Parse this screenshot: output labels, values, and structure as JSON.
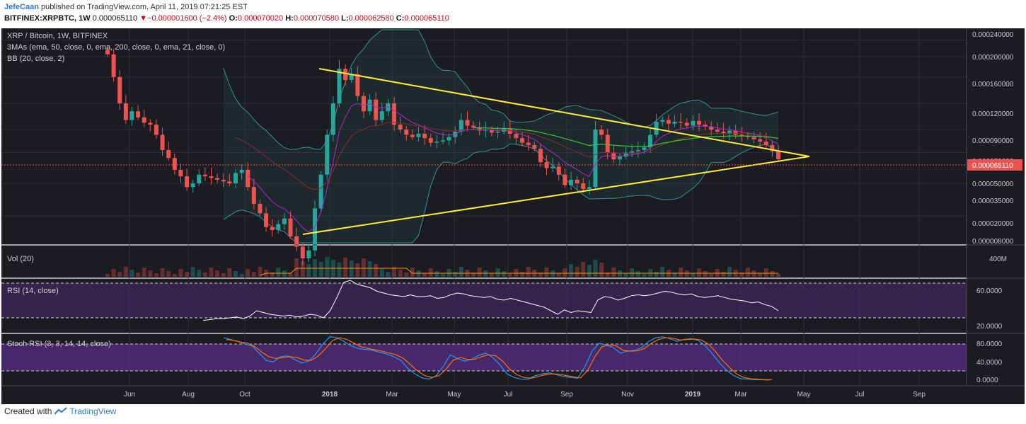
{
  "header": {
    "user": "JefeCaan",
    "published_text": " published on TradingView.com, April 11, 2019 07:21:25 EST",
    "symbol": "BITFINEX:XRPBTC, 1W",
    "last": "0.000065110",
    "change_arrow": "▼",
    "change": "−0.000001600 (−2.4%)",
    "o_label": "O:",
    "o_value": "0.000070020",
    "h_label": "H:",
    "h_value": "0.000070580",
    "l_label": "L:",
    "l_value": "0.000062580",
    "c_label": "C:",
    "c_value": "0.000065110"
  },
  "footer": {
    "created_with": "Created with",
    "brand": "TradingView",
    "logo_icon": "tradingview-logo-icon"
  },
  "colors": {
    "background": "#1b1b22",
    "grid": "#2c2c36",
    "up": "#26a69a",
    "down": "#ef5350",
    "trendline": "#ffeb3b",
    "ema50": "#b026c6",
    "ema200": "#33cc33",
    "ema21": "#8b2a2a",
    "bb": "#3a8f8f",
    "rsi_line": "#ffffff",
    "rsi_band": "#4b2a6e",
    "stoch_k": "#2196f3",
    "stoch_d": "#ff6d00",
    "price_line": "#ef5350"
  },
  "main_pane": {
    "legend": [
      "XRP / Bitcoin, 1W, BITFINEX",
      "3MAs (ema, 50, close, 0, ema, 200, close, 0, ema, 21, close, 0)",
      "BB (20, close, 2)"
    ],
    "y_ticks": [
      "0.000240000",
      "0.000200000",
      "0.000160000",
      "0.000120000",
      "0.000090000",
      "0.000070000",
      "0.000050000",
      "0.000035000",
      "0.000020000",
      "0.000008000"
    ],
    "last_price_label": "0.000065110"
  },
  "vol_pane": {
    "legend": "Vol (20)",
    "y_ticks": [
      "400M"
    ]
  },
  "rsi_pane": {
    "legend": "RSI (14, close)",
    "y_ticks": [
      "60.0000",
      "20.0000"
    ]
  },
  "stoch_pane": {
    "legend": "Stoch RSI (3, 3, 14, 14, close)",
    "y_ticks": [
      "80.0000",
      "40.0000",
      "0.0000"
    ]
  },
  "x_axis": {
    "labels": [
      "Jun",
      "Aug",
      "Oct",
      "2018",
      "Mar",
      "May",
      "Jul",
      "Sep",
      "Nov",
      "2019",
      "Mar",
      "May",
      "Jul",
      "Sep"
    ]
  },
  "chart_data": {
    "type": "candlestick",
    "title": "XRP / Bitcoin, 1W, BITFINEX",
    "x_labels": [
      "Jun",
      "Aug",
      "Oct",
      "2018",
      "Mar",
      "May",
      "Jul",
      "Sep",
      "Nov",
      "2019",
      "Mar",
      "May",
      "Jul",
      "Sep"
    ],
    "y_ticks": [
      0.00024,
      0.0002,
      0.00016,
      0.00012,
      9e-05,
      7e-05,
      5e-05,
      3.5e-05,
      2e-05,
      8e-06
    ],
    "y_scale": "log",
    "last_close": 6.511e-05,
    "indicators": [
      "3MAs (ema 50, ema 200, ema 21)",
      "BB (20, close, 2)",
      "Vol (20)",
      "RSI (14, close)",
      "Stoch RSI (3, 3, 14, 14, close)"
    ],
    "candles_close": [
      0.000205,
      0.00016,
      0.00012,
      0.0001,
      0.00011,
      0.000103,
      9.7e-05,
      9.5e-05,
      8.5e-05,
      7.2e-05,
      6.6e-05,
      5.8e-05,
      5.4e-05,
      4.8e-05,
      5e-05,
      5.5e-05,
      5.4e-05,
      5.3e-05,
      5.2e-05,
      5.1e-05,
      5e-05,
      5.6e-05,
      5.8e-05,
      4.8e-05,
      4e-05,
      3.6e-05,
      3.1e-05,
      3e-05,
      3.2e-05,
      3.4e-05,
      2.8e-05,
      2.5e-05,
      2.2e-05,
      2.4e-05,
      3.8e-05,
      5.5e-05,
      8.5e-05,
      0.00012,
      0.000175,
      0.000155,
      0.000165,
      0.00013,
      0.00011,
      0.000125,
      0.0001,
      0.00011,
      0.00012,
      9.5e-05,
      9e-05,
      8.5e-05,
      8.3e-05,
      8.6e-05,
      8.2e-05,
      7.8e-05,
      7.9e-05,
      8e-05,
      8.3e-05,
      8.8e-05,
      0.0001,
      9.4e-05,
      9.2e-05,
      8.9e-05,
      9e-05,
      8.7e-05,
      8.8e-05,
      9.1e-05,
      8.6e-05,
      8.2e-05,
      7.8e-05,
      7.6e-05,
      7.3e-05,
      6.3e-05,
      5.9e-05,
      6e-05,
      5.5e-05,
      4.9e-05,
      5.2e-05,
      5e-05,
      4.7e-05,
      4.8e-05,
      9e-05,
      8.5e-05,
      7e-05,
      6.5e-05,
      6.7e-05,
      7e-05,
      7.1e-05,
      7.2e-05,
      7.4e-05,
      8.5e-05,
      9.8e-05,
      0.0001,
      9.6e-05,
      9.8e-05,
      9.7e-05,
      9.4e-05,
      9.9e-05,
      9.5e-05,
      9.3e-05,
      9e-05,
      8.8e-05,
      8.6e-05,
      8.9e-05,
      8.5e-05,
      8.4e-05,
      8.3e-05,
      8.1e-05,
      7.9e-05,
      7.6e-05,
      7.1e-05,
      6.51e-05
    ],
    "rsi": [
      29,
      30,
      31,
      31,
      32,
      33,
      31,
      34,
      40,
      38,
      36,
      35,
      34,
      35,
      33,
      34,
      36,
      35,
      32,
      40,
      55,
      72,
      79,
      70,
      68,
      66,
      62,
      60,
      58,
      57,
      56,
      58,
      56,
      56,
      57,
      54,
      55,
      58,
      60,
      59,
      57,
      56,
      55,
      56,
      53,
      52,
      54,
      52,
      50,
      48,
      46,
      44,
      40,
      36,
      41,
      38,
      40,
      39,
      38,
      52,
      56,
      55,
      52,
      54,
      57,
      58,
      57,
      58,
      60,
      62,
      61,
      59,
      58,
      59,
      56,
      55,
      56,
      57,
      55,
      53,
      52,
      51,
      49,
      50,
      47,
      45,
      40
    ],
    "stoch_k": [
      94,
      90,
      86,
      80,
      76,
      60,
      44,
      40,
      52,
      54,
      46,
      38,
      42,
      58,
      80,
      96,
      94,
      86,
      76,
      70,
      68,
      66,
      62,
      58,
      52,
      44,
      26,
      14,
      5,
      2,
      10,
      30,
      56,
      48,
      42,
      46,
      55,
      60,
      50,
      34,
      14,
      6,
      2,
      2,
      10,
      14,
      16,
      12,
      8,
      6,
      4,
      30,
      64,
      82,
      78,
      72,
      60,
      64,
      66,
      72,
      86,
      94,
      96,
      92,
      86,
      90,
      92,
      88,
      76,
      58,
      38,
      22,
      10,
      3,
      2,
      1,
      1,
      0
    ],
    "stoch_d": [
      90,
      88,
      84,
      82,
      74,
      62,
      52,
      48,
      50,
      52,
      50,
      44,
      44,
      54,
      70,
      88,
      94,
      90,
      82,
      74,
      70,
      67,
      64,
      60,
      56,
      48,
      34,
      20,
      10,
      6,
      10,
      24,
      44,
      50,
      46,
      46,
      52,
      56,
      54,
      42,
      24,
      12,
      6,
      4,
      8,
      12,
      14,
      13,
      10,
      7,
      5,
      22,
      52,
      74,
      78,
      76,
      66,
      64,
      65,
      70,
      82,
      90,
      94,
      93,
      89,
      90,
      91,
      89,
      80,
      64,
      44,
      28,
      14,
      6,
      3,
      2,
      1,
      1
    ]
  }
}
